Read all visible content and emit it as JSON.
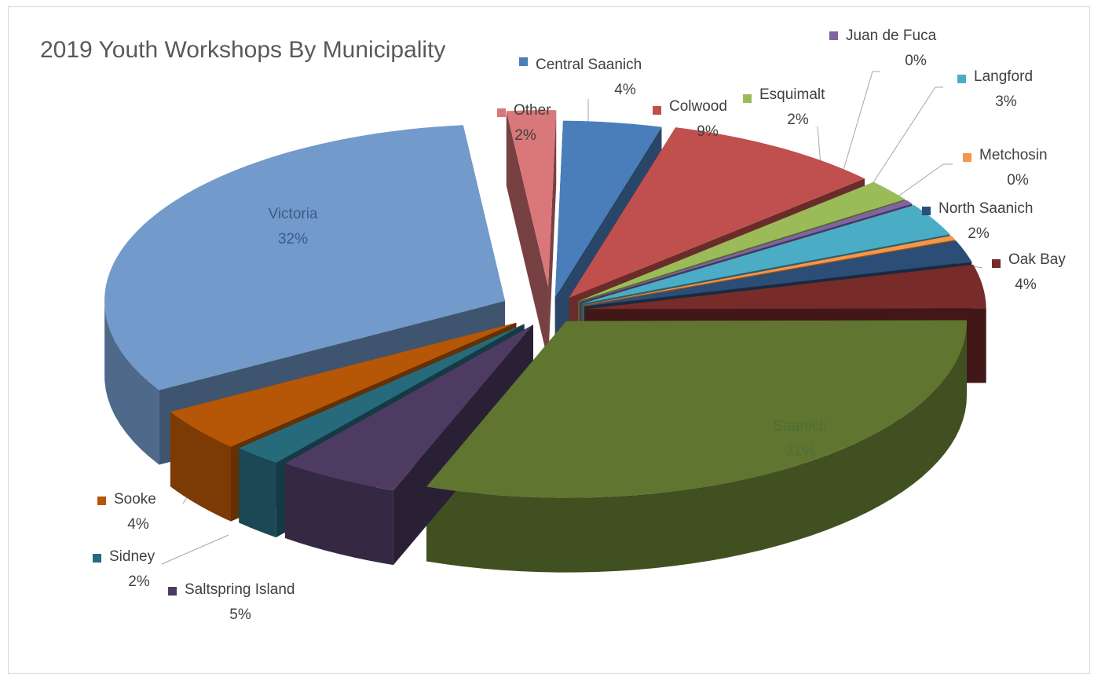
{
  "chart_data": {
    "type": "pie",
    "title": "2019 Youth Workshops By Municipality",
    "style": "3d-exploded",
    "start_category": "Central Saanich",
    "direction": "clockwise",
    "slices": [
      {
        "label": "Central Saanich",
        "value": 4,
        "display": "4%",
        "color": "#4a7ebb"
      },
      {
        "label": "Colwood",
        "value": 9,
        "display": "9%",
        "color": "#c0504d"
      },
      {
        "label": "Esquimalt",
        "value": 2,
        "display": "2%",
        "color": "#9bbb59"
      },
      {
        "label": "Juan de Fuca",
        "value": 0.4,
        "display": "0%",
        "color": "#8064a2"
      },
      {
        "label": "Langford",
        "value": 3,
        "display": "3%",
        "color": "#4bacc6"
      },
      {
        "label": "Metchosin",
        "value": 0.4,
        "display": "0%",
        "color": "#f79646"
      },
      {
        "label": "North Saanich",
        "value": 2,
        "display": "2%",
        "color": "#2c4d75"
      },
      {
        "label": "Oak Bay",
        "value": 4,
        "display": "4%",
        "color": "#772c2a"
      },
      {
        "label": "Saanich",
        "value": 31,
        "display": "31%",
        "color": "#5f7530"
      },
      {
        "label": "Saltspring Island",
        "value": 5,
        "display": "5%",
        "color": "#4d3b62"
      },
      {
        "label": "Sidney",
        "value": 2,
        "display": "2%",
        "color": "#276a7c"
      },
      {
        "label": "Sooke",
        "value": 4,
        "display": "4%",
        "color": "#b65708"
      },
      {
        "label": "Victoria",
        "value": 32,
        "display": "32%",
        "color": "#729aca"
      },
      {
        "label": "Other",
        "value": 2,
        "display": "2%",
        "color": "#d9777a"
      }
    ]
  }
}
